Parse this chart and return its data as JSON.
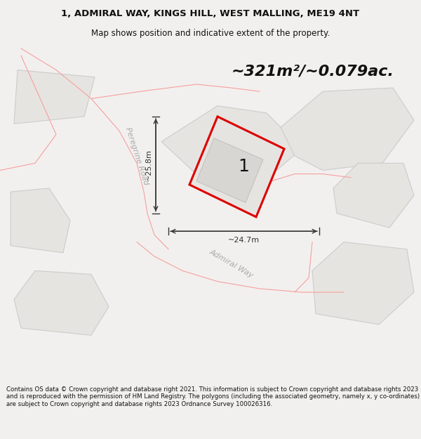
{
  "title_line1": "1, ADMIRAL WAY, KINGS HILL, WEST MALLING, ME19 4NT",
  "title_line2": "Map shows position and indicative extent of the property.",
  "area_text": "~321m²/~0.079ac.",
  "label_number": "1",
  "dim_width": "~24.7m",
  "dim_height": "~25.8m",
  "road_label1": "Peregrine Road",
  "road_label2": "Admiral Way",
  "footer_text": "Contains OS data © Crown copyright and database right 2021. This information is subject to Crown copyright and database rights 2023 and is reproduced with the permission of HM Land Registry. The polygons (including the associated geometry, namely x, y co-ordinates) are subject to Crown copyright and database rights 2023 Ordnance Survey 100026316.",
  "bg_color": "#f2f0ee",
  "map_bg": "#ffffff",
  "plot_fill": "#e8e6e2",
  "plot_stroke": "#dd0000",
  "parcel_fill": "#e6e4e0",
  "parcel_stroke": "#f0a0a0",
  "road_color": "#ffffff",
  "text_color": "#111111",
  "dim_color": "#333333",
  "road_text_color": "#aaaaaa",
  "title_fontsize": 9.5,
  "subtitle_fontsize": 8.5,
  "area_fontsize": 16,
  "label_fontsize": 18,
  "dim_fontsize": 8,
  "road_fontsize": 8,
  "footer_fontsize": 6.2
}
